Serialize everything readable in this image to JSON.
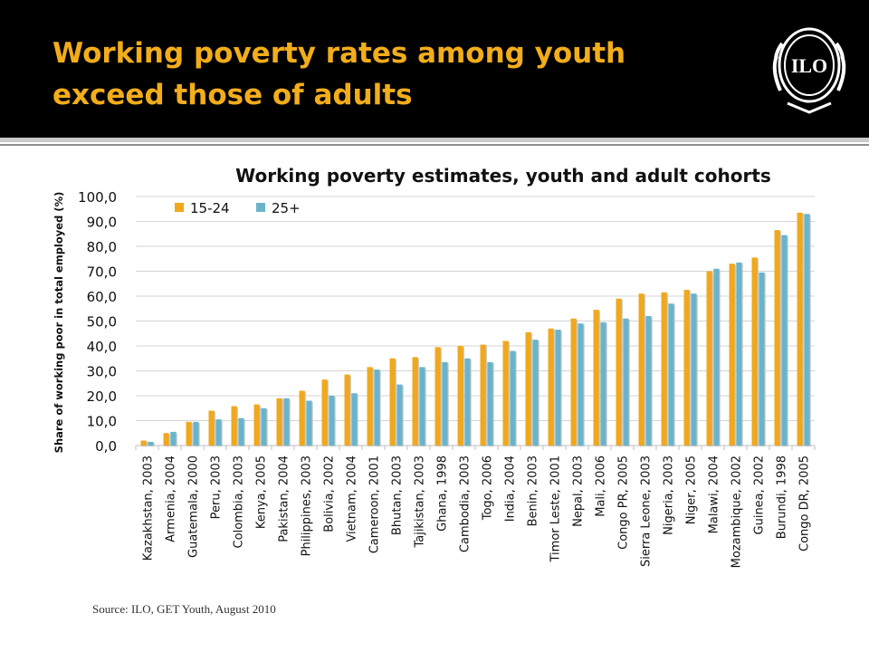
{
  "slide": {
    "title": "Working poverty rates among youth exceed those of adults",
    "source": "Source: ILO, GET Youth, August 2010",
    "logo_text": "ILO"
  },
  "colors": {
    "header_bg": "#000000",
    "title": "#f2ad1a",
    "series_youth": "#f0a81c",
    "series_adult": "#6ab4cb",
    "gridline": "#d4d4d4"
  },
  "chart_data": {
    "type": "bar",
    "title": "Working poverty estimates, youth and adult cohorts",
    "xlabel": "",
    "ylabel": "Share of working poor in total employed (%)",
    "ylim": [
      0,
      100
    ],
    "yticks": [
      "0,0",
      "10,0",
      "20,0",
      "30,0",
      "40,0",
      "50,0",
      "60,0",
      "70,0",
      "80,0",
      "90,0",
      "100,0"
    ],
    "grid": true,
    "legend_position": "top-left",
    "categories": [
      "Kazakhstan, 2003",
      "Armenia, 2004",
      "Guatemala, 2000",
      "Peru, 2003",
      "Colombia, 2003",
      "Kenya, 2005",
      "Pakistan, 2004",
      "Philippines, 2003",
      "Bolivia, 2002",
      "Vietnam, 2004",
      "Cameroon, 2001",
      "Bhutan, 2003",
      "Tajikistan, 2003",
      "Ghana, 1998",
      "Cambodia, 2003",
      "Togo, 2006",
      "India, 2004",
      "Benin, 2003",
      "Timor Leste, 2001",
      "Nepal, 2003",
      "Mali, 2006",
      "Congo PR, 2005",
      "Sierra Leone, 2003",
      "Nigeria, 2003",
      "Niger, 2005",
      "Malawi, 2004",
      "Mozambique, 2002",
      "Guinea, 2002",
      "Burundi, 1998",
      "Congo DR, 2005"
    ],
    "series": [
      {
        "name": "15-24",
        "values": [
          2.0,
          5.0,
          9.5,
          14.0,
          15.8,
          16.5,
          19.0,
          22.0,
          26.5,
          28.5,
          31.5,
          35.0,
          35.5,
          39.5,
          40.0,
          40.5,
          42.0,
          45.5,
          47.0,
          51.0,
          54.5,
          59.0,
          61.0,
          61.5,
          62.5,
          70.0,
          73.0,
          75.5,
          86.5,
          93.5
        ]
      },
      {
        "name": "25+",
        "values": [
          1.5,
          5.5,
          9.5,
          10.5,
          11.0,
          15.0,
          19.0,
          18.0,
          20.0,
          21.0,
          30.5,
          24.5,
          31.5,
          33.5,
          35.0,
          33.5,
          38.0,
          42.5,
          46.5,
          49.0,
          49.5,
          51.0,
          52.0,
          57.0,
          61.0,
          71.0,
          73.5,
          69.5,
          84.5,
          93.0
        ]
      }
    ]
  }
}
